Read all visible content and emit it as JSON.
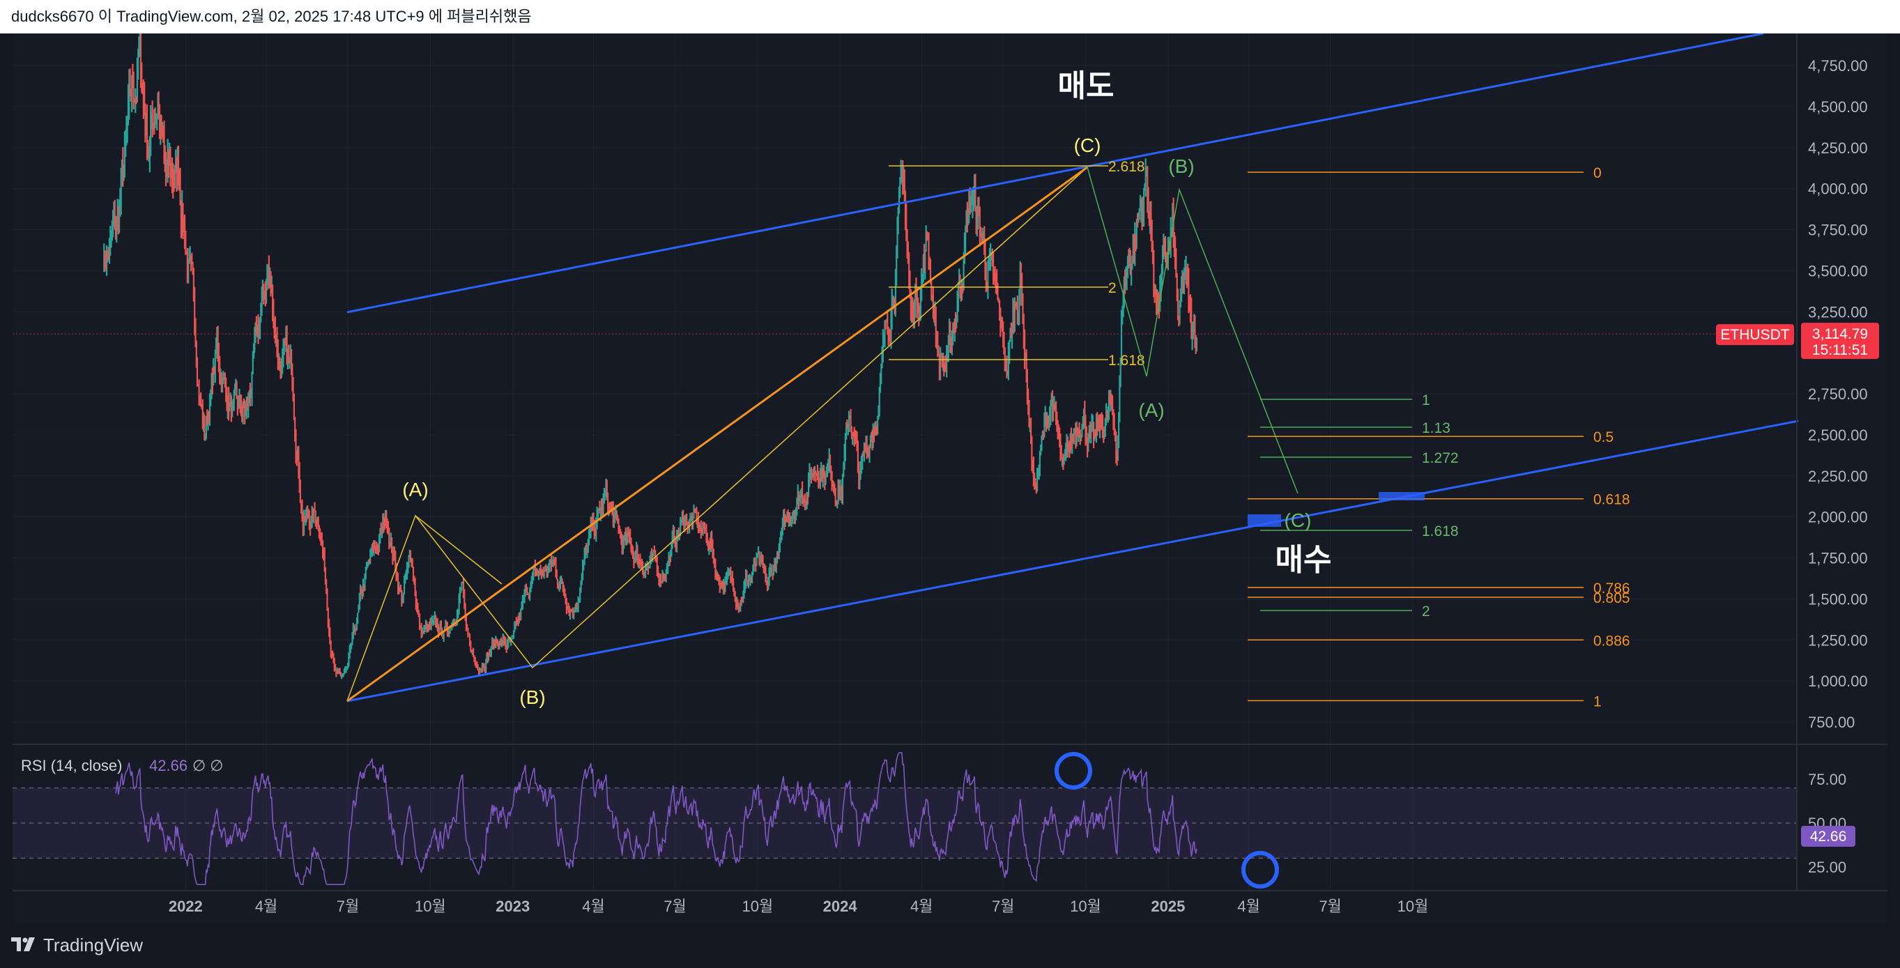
{
  "header": {
    "attribution": "dudcks6670 이 TradingView.com, 2월 02, 2025 17:48 UTC+9 에 퍼블리쉬했음"
  },
  "footer": {
    "brand": "TradingView"
  },
  "chart_data": [
    {
      "type": "line",
      "symbol": "ETHUSDT",
      "last_price": "3,114.79",
      "countdown": "15:11:51",
      "x_tick_labels": [
        "2022",
        "4월",
        "7월",
        "10월",
        "2023",
        "4월",
        "7월",
        "10월",
        "2024",
        "4월",
        "7월",
        "10월",
        "2025",
        "4월",
        "7월",
        "10월"
      ],
      "y_tick_labels": [
        "4,750.00",
        "4,500.00",
        "4,250.00",
        "4,000.00",
        "3,750.00",
        "3,500.00",
        "3,250.00",
        "2,750.00",
        "2,500.00",
        "2,250.00",
        "2,000.00",
        "1,750.00",
        "1,500.00",
        "1,250.00",
        "1,000.00",
        "750.00"
      ],
      "ylim": [
        600,
        4950
      ],
      "xlim": [
        "2021-10-01",
        "2025-11-15"
      ],
      "price_path": [
        [
          "2021-10-01",
          3600
        ],
        [
          "2021-10-15",
          3700
        ],
        [
          "2021-10-29",
          4300
        ],
        [
          "2021-11-10",
          4800
        ],
        [
          "2021-11-20",
          4300
        ],
        [
          "2021-12-01",
          4600
        ],
        [
          "2021-12-10",
          4000
        ],
        [
          "2021-12-25",
          4100
        ],
        [
          "2022-01-05",
          3500
        ],
        [
          "2022-01-22",
          2500
        ],
        [
          "2022-02-05",
          3000
        ],
        [
          "2022-02-24",
          2600
        ],
        [
          "2022-03-10",
          2600
        ],
        [
          "2022-04-03",
          3500
        ],
        [
          "2022-04-15",
          3000
        ],
        [
          "2022-05-01",
          2800
        ],
        [
          "2022-05-12",
          2000
        ],
        [
          "2022-05-31",
          2000
        ],
        [
          "2022-06-13",
          1200
        ],
        [
          "2022-06-18",
          1000
        ],
        [
          "2022-07-01",
          1050
        ],
        [
          "2022-07-20",
          1600
        ],
        [
          "2022-08-14",
          2000
        ],
        [
          "2022-08-30",
          1500
        ],
        [
          "2022-09-10",
          1750
        ],
        [
          "2022-09-20",
          1300
        ],
        [
          "2022-10-20",
          1300
        ],
        [
          "2022-11-06",
          1600
        ],
        [
          "2022-11-10",
          1250
        ],
        [
          "2022-11-21",
          1100
        ],
        [
          "2022-12-15",
          1250
        ],
        [
          "2023-01-01",
          1200
        ],
        [
          "2023-01-20",
          1600
        ],
        [
          "2023-02-15",
          1700
        ],
        [
          "2023-03-10",
          1450
        ],
        [
          "2023-03-25",
          1800
        ],
        [
          "2023-04-15",
          2100
        ],
        [
          "2023-05-01",
          1850
        ],
        [
          "2023-06-15",
          1650
        ],
        [
          "2023-07-13",
          2000
        ],
        [
          "2023-08-10",
          1850
        ],
        [
          "2023-08-17",
          1650
        ],
        [
          "2023-09-11",
          1550
        ],
        [
          "2023-10-01",
          1700
        ],
        [
          "2023-10-12",
          1550
        ],
        [
          "2023-10-25",
          1800
        ],
        [
          "2023-11-10",
          2100
        ],
        [
          "2023-12-10",
          2350
        ],
        [
          "2024-01-03",
          2200
        ],
        [
          "2024-01-12",
          2650
        ],
        [
          "2024-01-23",
          2200
        ],
        [
          "2024-02-15",
          2800
        ],
        [
          "2024-03-12",
          4050
        ],
        [
          "2024-03-20",
          3200
        ],
        [
          "2024-04-08",
          3700
        ],
        [
          "2024-04-20",
          3000
        ],
        [
          "2024-05-01",
          2900
        ],
        [
          "2024-05-20",
          3750
        ],
        [
          "2024-05-27",
          3950
        ],
        [
          "2024-06-15",
          3500
        ],
        [
          "2024-07-05",
          2900
        ],
        [
          "2024-07-20",
          3500
        ],
        [
          "2024-08-05",
          2150
        ],
        [
          "2024-08-24",
          2750
        ],
        [
          "2024-09-06",
          2200
        ],
        [
          "2024-09-27",
          2700
        ],
        [
          "2024-10-10",
          2400
        ],
        [
          "2024-10-28",
          2650
        ],
        [
          "2024-11-05",
          2400
        ],
        [
          "2024-11-12",
          3400
        ],
        [
          "2024-12-08",
          4050
        ],
        [
          "2024-12-20",
          3300
        ],
        [
          "2025-01-06",
          3700
        ],
        [
          "2025-01-13",
          3100
        ],
        [
          "2025-01-20",
          3450
        ],
        [
          "2025-01-27",
          3050
        ],
        [
          "2025-02-02",
          3114
        ]
      ],
      "annotations": {
        "sell_label": "매도",
        "buy_label": "매수",
        "wave_labels_yellow": [
          "(A)",
          "(B)",
          "(C)"
        ],
        "wave_labels_green": [
          "(A)",
          "(B)",
          "(C)"
        ],
        "fib_ext_yellow": [
          "2.618",
          "2",
          "1.618"
        ],
        "fib_ext_green": [
          "1",
          "1.13",
          "1.272",
          "1.618",
          "2"
        ],
        "fib_retracement": [
          "0",
          "0.5",
          "0.618",
          "0.786",
          "0.805",
          "0.886",
          "1"
        ],
        "fib_retracement_values": [
          4100,
          2490,
          2110,
          1570,
          1510,
          1250,
          880
        ]
      },
      "colors": {
        "up": "#26a69a",
        "down": "#ef5350",
        "channel": "#2962ff",
        "fib_yellow": "#e6c229",
        "fib_orange": "#f7931a",
        "fib_green": "#4caf50",
        "price_badge": "#f23645"
      }
    },
    {
      "type": "line",
      "title": "RSI (14, close)",
      "value_label": "42.66",
      "flags": "∅ ∅",
      "y_tick_labels": [
        "75.00",
        "50.00",
        "25.00"
      ],
      "ylim": [
        15,
        90
      ],
      "band": [
        30,
        70
      ],
      "mid": 50,
      "color": "#7e57c2"
    }
  ]
}
